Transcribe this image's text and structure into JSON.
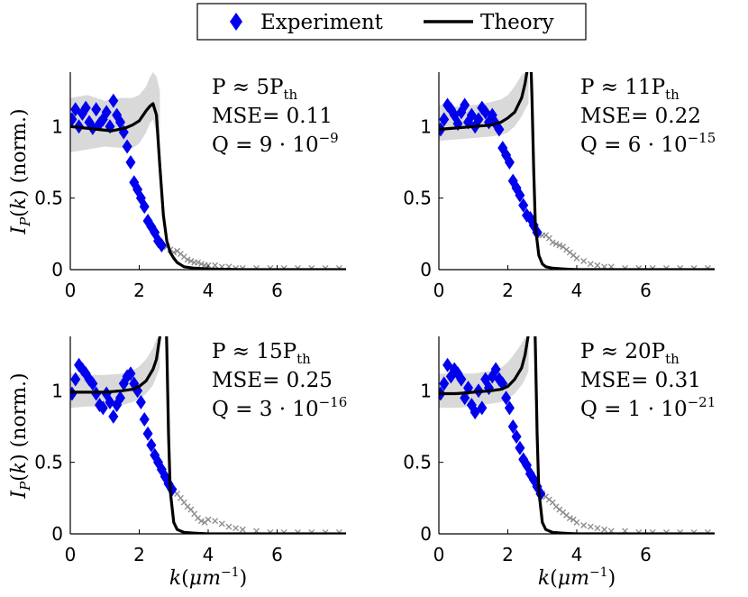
{
  "legend": {
    "experiment_label": "Experiment",
    "theory_label": "Theory"
  },
  "y_axis_label": "I_P(k) (norm.)",
  "x_axis_label": "k(μm^-1)",
  "colors": {
    "experiment": "#0000ee",
    "theory": "#000000",
    "tail": "#8a8a8a",
    "band": "#d9d9d9"
  },
  "chart_data": [
    {
      "type": "line",
      "annotation": {
        "P": "P ≈ 5P_th",
        "mse": "MSE= 0.11",
        "q": "Q = 9 · 10^-9"
      },
      "xlim": [
        0,
        8
      ],
      "ylim": [
        0,
        1.38
      ],
      "xticks": [
        0,
        2,
        4,
        6
      ],
      "yticks": [
        0,
        0.5,
        1
      ],
      "experiment": {
        "x": [
          0.05,
          0.15,
          0.25,
          0.35,
          0.45,
          0.55,
          0.65,
          0.75,
          0.85,
          0.95,
          1.05,
          1.15,
          1.25,
          1.35,
          1.45,
          1.55,
          1.65,
          1.75,
          1.85,
          1.95,
          2.05,
          2.15,
          2.25,
          2.35,
          2.45,
          2.55,
          2.65
        ],
        "y": [
          1.05,
          1.12,
          1.0,
          1.09,
          1.13,
          1.03,
          0.99,
          1.12,
          1.02,
          1.05,
          1.1,
          1.0,
          1.18,
          1.08,
          1.03,
          0.96,
          0.86,
          0.75,
          0.61,
          0.56,
          0.5,
          0.44,
          0.34,
          0.3,
          0.26,
          0.2,
          0.17
        ]
      },
      "tail": {
        "x": [
          2.8,
          2.9,
          3.0,
          3.1,
          3.2,
          3.3,
          3.4,
          3.5,
          3.6,
          3.7,
          3.8,
          3.9,
          4.0,
          4.2,
          4.4,
          4.6,
          4.8,
          5.0,
          5.4,
          5.8,
          6.2,
          6.6,
          7.0,
          7.4,
          7.8
        ],
        "y": [
          0.16,
          0.14,
          0.12,
          0.13,
          0.11,
          0.09,
          0.07,
          0.06,
          0.05,
          0.05,
          0.04,
          0.03,
          0.03,
          0.03,
          0.02,
          0.02,
          0.01,
          0.01,
          0.01,
          0.01,
          0.01,
          0.01,
          0.01,
          0.01,
          0.01
        ]
      },
      "theory": {
        "x": [
          0,
          0.4,
          0.8,
          1.2,
          1.6,
          1.8,
          2.0,
          2.2,
          2.3,
          2.4,
          2.5,
          2.6,
          2.7,
          2.8,
          2.9,
          3.0,
          3.1,
          3.3,
          3.6,
          4,
          5,
          6,
          7,
          8
        ],
        "y": [
          1.0,
          0.99,
          0.98,
          0.97,
          0.99,
          1.01,
          1.04,
          1.11,
          1.14,
          1.16,
          1.08,
          0.72,
          0.38,
          0.2,
          0.12,
          0.08,
          0.05,
          0.02,
          0.01,
          0.005,
          0,
          0,
          0,
          0
        ]
      },
      "band": {
        "x": [
          0,
          0.5,
          1.0,
          1.5,
          1.8,
          2.0,
          2.2,
          2.3,
          2.4,
          2.5,
          2.6
        ],
        "upper": [
          1.2,
          1.22,
          1.18,
          1.2,
          1.2,
          1.22,
          1.28,
          1.34,
          1.38,
          1.35,
          1.25
        ],
        "lower": [
          0.82,
          0.84,
          0.86,
          0.85,
          0.85,
          0.88,
          0.96,
          1.02,
          1.05,
          0.95,
          0.8
        ]
      }
    },
    {
      "type": "line",
      "annotation": {
        "P": "P ≈ 11P_th",
        "mse": "MSE= 0.22",
        "q": "Q = 6 · 10^-15"
      },
      "xlim": [
        0,
        8
      ],
      "ylim": [
        0,
        1.38
      ],
      "xticks": [
        0,
        2,
        4,
        6
      ],
      "yticks": [
        0,
        0.5,
        1
      ],
      "experiment": {
        "x": [
          0.05,
          0.15,
          0.25,
          0.35,
          0.45,
          0.55,
          0.65,
          0.75,
          0.85,
          0.95,
          1.05,
          1.15,
          1.25,
          1.35,
          1.45,
          1.55,
          1.65,
          1.75,
          1.85,
          1.95,
          2.05,
          2.15,
          2.25,
          2.35,
          2.45,
          2.55,
          2.65,
          2.75,
          2.85
        ],
        "y": [
          0.98,
          1.05,
          1.15,
          1.12,
          1.08,
          1.02,
          1.1,
          1.15,
          1.03,
          1.08,
          1.0,
          1.05,
          1.13,
          1.1,
          1.03,
          1.08,
          1.02,
          0.98,
          0.85,
          0.8,
          0.75,
          0.62,
          0.57,
          0.52,
          0.45,
          0.38,
          0.36,
          0.31,
          0.26
        ]
      },
      "tail": {
        "x": [
          2.9,
          3.0,
          3.1,
          3.2,
          3.3,
          3.4,
          3.5,
          3.6,
          3.7,
          3.8,
          3.9,
          4.0,
          4.2,
          4.4,
          4.6,
          4.8,
          5.0,
          5.4,
          5.8,
          6.2,
          6.6,
          7.0,
          7.4,
          7.8
        ],
        "y": [
          0.25,
          0.24,
          0.24,
          0.22,
          0.19,
          0.18,
          0.17,
          0.16,
          0.14,
          0.12,
          0.1,
          0.08,
          0.06,
          0.04,
          0.03,
          0.02,
          0.02,
          0.01,
          0.01,
          0.01,
          0.01,
          0.01,
          0.01,
          0.01
        ]
      },
      "theory": {
        "x": [
          0,
          0.5,
          1.0,
          1.5,
          1.8,
          2.0,
          2.2,
          2.4,
          2.5,
          2.6,
          2.65,
          2.7,
          2.75,
          2.8,
          2.9,
          3.0,
          3.1,
          3.3,
          3.6,
          4,
          5,
          6,
          7,
          8
        ],
        "y": [
          0.98,
          0.99,
          1.0,
          1.01,
          1.03,
          1.06,
          1.1,
          1.2,
          1.3,
          1.45,
          1.6,
          1.2,
          0.7,
          0.3,
          0.1,
          0.04,
          0.02,
          0.01,
          0.005,
          0,
          0,
          0,
          0,
          0
        ]
      },
      "band": {
        "x": [
          0,
          0.5,
          1.0,
          1.5,
          1.8,
          2.0,
          2.2,
          2.4,
          2.5,
          2.6
        ],
        "upper": [
          1.15,
          1.14,
          1.15,
          1.17,
          1.19,
          1.22,
          1.28,
          1.36,
          1.38,
          1.38
        ],
        "lower": [
          0.9,
          0.91,
          0.92,
          0.93,
          0.94,
          0.96,
          1.0,
          1.07,
          1.12,
          1.16
        ]
      }
    },
    {
      "type": "line",
      "annotation": {
        "P": "P ≈ 15P_th",
        "mse": "MSE= 0.25",
        "q": "Q = 3 · 10^-16"
      },
      "xlim": [
        0,
        8
      ],
      "ylim": [
        0,
        1.38
      ],
      "xticks": [
        0,
        2,
        4,
        6
      ],
      "yticks": [
        0,
        0.5,
        1
      ],
      "experiment": {
        "x": [
          0.05,
          0.15,
          0.25,
          0.35,
          0.45,
          0.55,
          0.65,
          0.75,
          0.85,
          0.95,
          1.05,
          1.15,
          1.25,
          1.35,
          1.45,
          1.55,
          1.65,
          1.75,
          1.85,
          1.95,
          2.05,
          2.15,
          2.25,
          2.35,
          2.45,
          2.55,
          2.65,
          2.75,
          2.85,
          2.95
        ],
        "y": [
          0.98,
          1.08,
          1.18,
          1.15,
          1.12,
          1.08,
          1.05,
          0.98,
          0.9,
          0.88,
          0.98,
          0.92,
          0.82,
          0.9,
          0.95,
          1.05,
          1.1,
          1.12,
          1.05,
          1.0,
          0.92,
          0.8,
          0.7,
          0.62,
          0.55,
          0.5,
          0.45,
          0.4,
          0.35,
          0.31
        ]
      },
      "tail": {
        "x": [
          3.0,
          3.1,
          3.2,
          3.3,
          3.4,
          3.5,
          3.6,
          3.7,
          3.8,
          3.9,
          4.0,
          4.2,
          4.4,
          4.6,
          4.8,
          5.0,
          5.4,
          5.8,
          6.2,
          6.6,
          7.0,
          7.4,
          7.8
        ],
        "y": [
          0.3,
          0.28,
          0.25,
          0.22,
          0.19,
          0.17,
          0.14,
          0.11,
          0.09,
          0.08,
          0.1,
          0.09,
          0.07,
          0.05,
          0.04,
          0.03,
          0.02,
          0.01,
          0.01,
          0.01,
          0.01,
          0.01,
          0.01
        ]
      },
      "theory": {
        "x": [
          0,
          0.5,
          1.0,
          1.5,
          1.8,
          2.0,
          2.2,
          2.4,
          2.5,
          2.6,
          2.7,
          2.75,
          2.8,
          2.85,
          2.9,
          3.0,
          3.1,
          3.3,
          3.6,
          4,
          5,
          6,
          7,
          8
        ],
        "y": [
          0.99,
          0.99,
          0.99,
          1.0,
          1.01,
          1.03,
          1.07,
          1.15,
          1.22,
          1.38,
          1.55,
          1.8,
          1.3,
          0.7,
          0.3,
          0.08,
          0.03,
          0.01,
          0.005,
          0,
          0,
          0,
          0,
          0
        ]
      },
      "band": {
        "x": [
          0,
          0.5,
          1.0,
          1.5,
          1.8,
          2.0,
          2.2,
          2.4,
          2.5,
          2.6
        ],
        "upper": [
          1.12,
          1.11,
          1.11,
          1.12,
          1.14,
          1.17,
          1.22,
          1.3,
          1.36,
          1.38
        ],
        "lower": [
          0.88,
          0.89,
          0.89,
          0.9,
          0.92,
          0.94,
          0.98,
          1.04,
          1.1,
          1.16
        ]
      }
    },
    {
      "type": "line",
      "annotation": {
        "P": "P ≈ 20P_th",
        "mse": "MSE= 0.31",
        "q": "Q = 1 · 10^-21"
      },
      "xlim": [
        0,
        8
      ],
      "ylim": [
        0,
        1.38
      ],
      "xticks": [
        0,
        2,
        4,
        6
      ],
      "yticks": [
        0,
        0.5,
        1
      ],
      "experiment": {
        "x": [
          0.05,
          0.15,
          0.25,
          0.35,
          0.45,
          0.55,
          0.65,
          0.75,
          0.85,
          0.95,
          1.05,
          1.15,
          1.25,
          1.35,
          1.45,
          1.55,
          1.65,
          1.75,
          1.85,
          1.95,
          2.05,
          2.15,
          2.25,
          2.35,
          2.45,
          2.55,
          2.65,
          2.75,
          2.85,
          2.95
        ],
        "y": [
          0.98,
          1.05,
          1.18,
          1.1,
          1.15,
          1.12,
          1.08,
          0.95,
          1.02,
          0.9,
          0.85,
          1.0,
          0.88,
          1.08,
          1.02,
          1.1,
          1.15,
          1.08,
          1.05,
          0.95,
          0.88,
          0.75,
          0.68,
          0.6,
          0.52,
          0.48,
          0.42,
          0.38,
          0.33,
          0.28
        ]
      },
      "tail": {
        "x": [
          3.0,
          3.1,
          3.2,
          3.3,
          3.4,
          3.5,
          3.6,
          3.7,
          3.8,
          3.9,
          4.0,
          4.2,
          4.4,
          4.6,
          4.8,
          5.0,
          5.4,
          5.8,
          6.2,
          6.6,
          7.0,
          7.4,
          7.8
        ],
        "y": [
          0.28,
          0.26,
          0.24,
          0.22,
          0.19,
          0.17,
          0.15,
          0.13,
          0.11,
          0.1,
          0.08,
          0.06,
          0.05,
          0.04,
          0.03,
          0.02,
          0.02,
          0.01,
          0.01,
          0.01,
          0.01,
          0.01,
          0.01
        ]
      },
      "theory": {
        "x": [
          0,
          0.5,
          1.0,
          1.5,
          1.8,
          2.0,
          2.2,
          2.4,
          2.5,
          2.6,
          2.7,
          2.75,
          2.8,
          2.85,
          2.9,
          3.0,
          3.1,
          3.3,
          3.6,
          4,
          5,
          6,
          7,
          8
        ],
        "y": [
          0.98,
          0.98,
          0.99,
          1.0,
          1.01,
          1.03,
          1.08,
          1.16,
          1.25,
          1.4,
          1.6,
          1.85,
          1.3,
          0.7,
          0.3,
          0.08,
          0.03,
          0.01,
          0.005,
          0,
          0,
          0,
          0,
          0
        ]
      },
      "band": {
        "x": [
          0,
          0.5,
          1.0,
          1.5,
          1.8,
          2.0,
          2.2,
          2.4,
          2.5,
          2.6
        ],
        "upper": [
          1.12,
          1.12,
          1.12,
          1.14,
          1.16,
          1.2,
          1.26,
          1.33,
          1.37,
          1.38
        ],
        "lower": [
          0.88,
          0.88,
          0.89,
          0.91,
          0.92,
          0.94,
          0.98,
          1.04,
          1.08,
          1.14
        ]
      }
    }
  ]
}
